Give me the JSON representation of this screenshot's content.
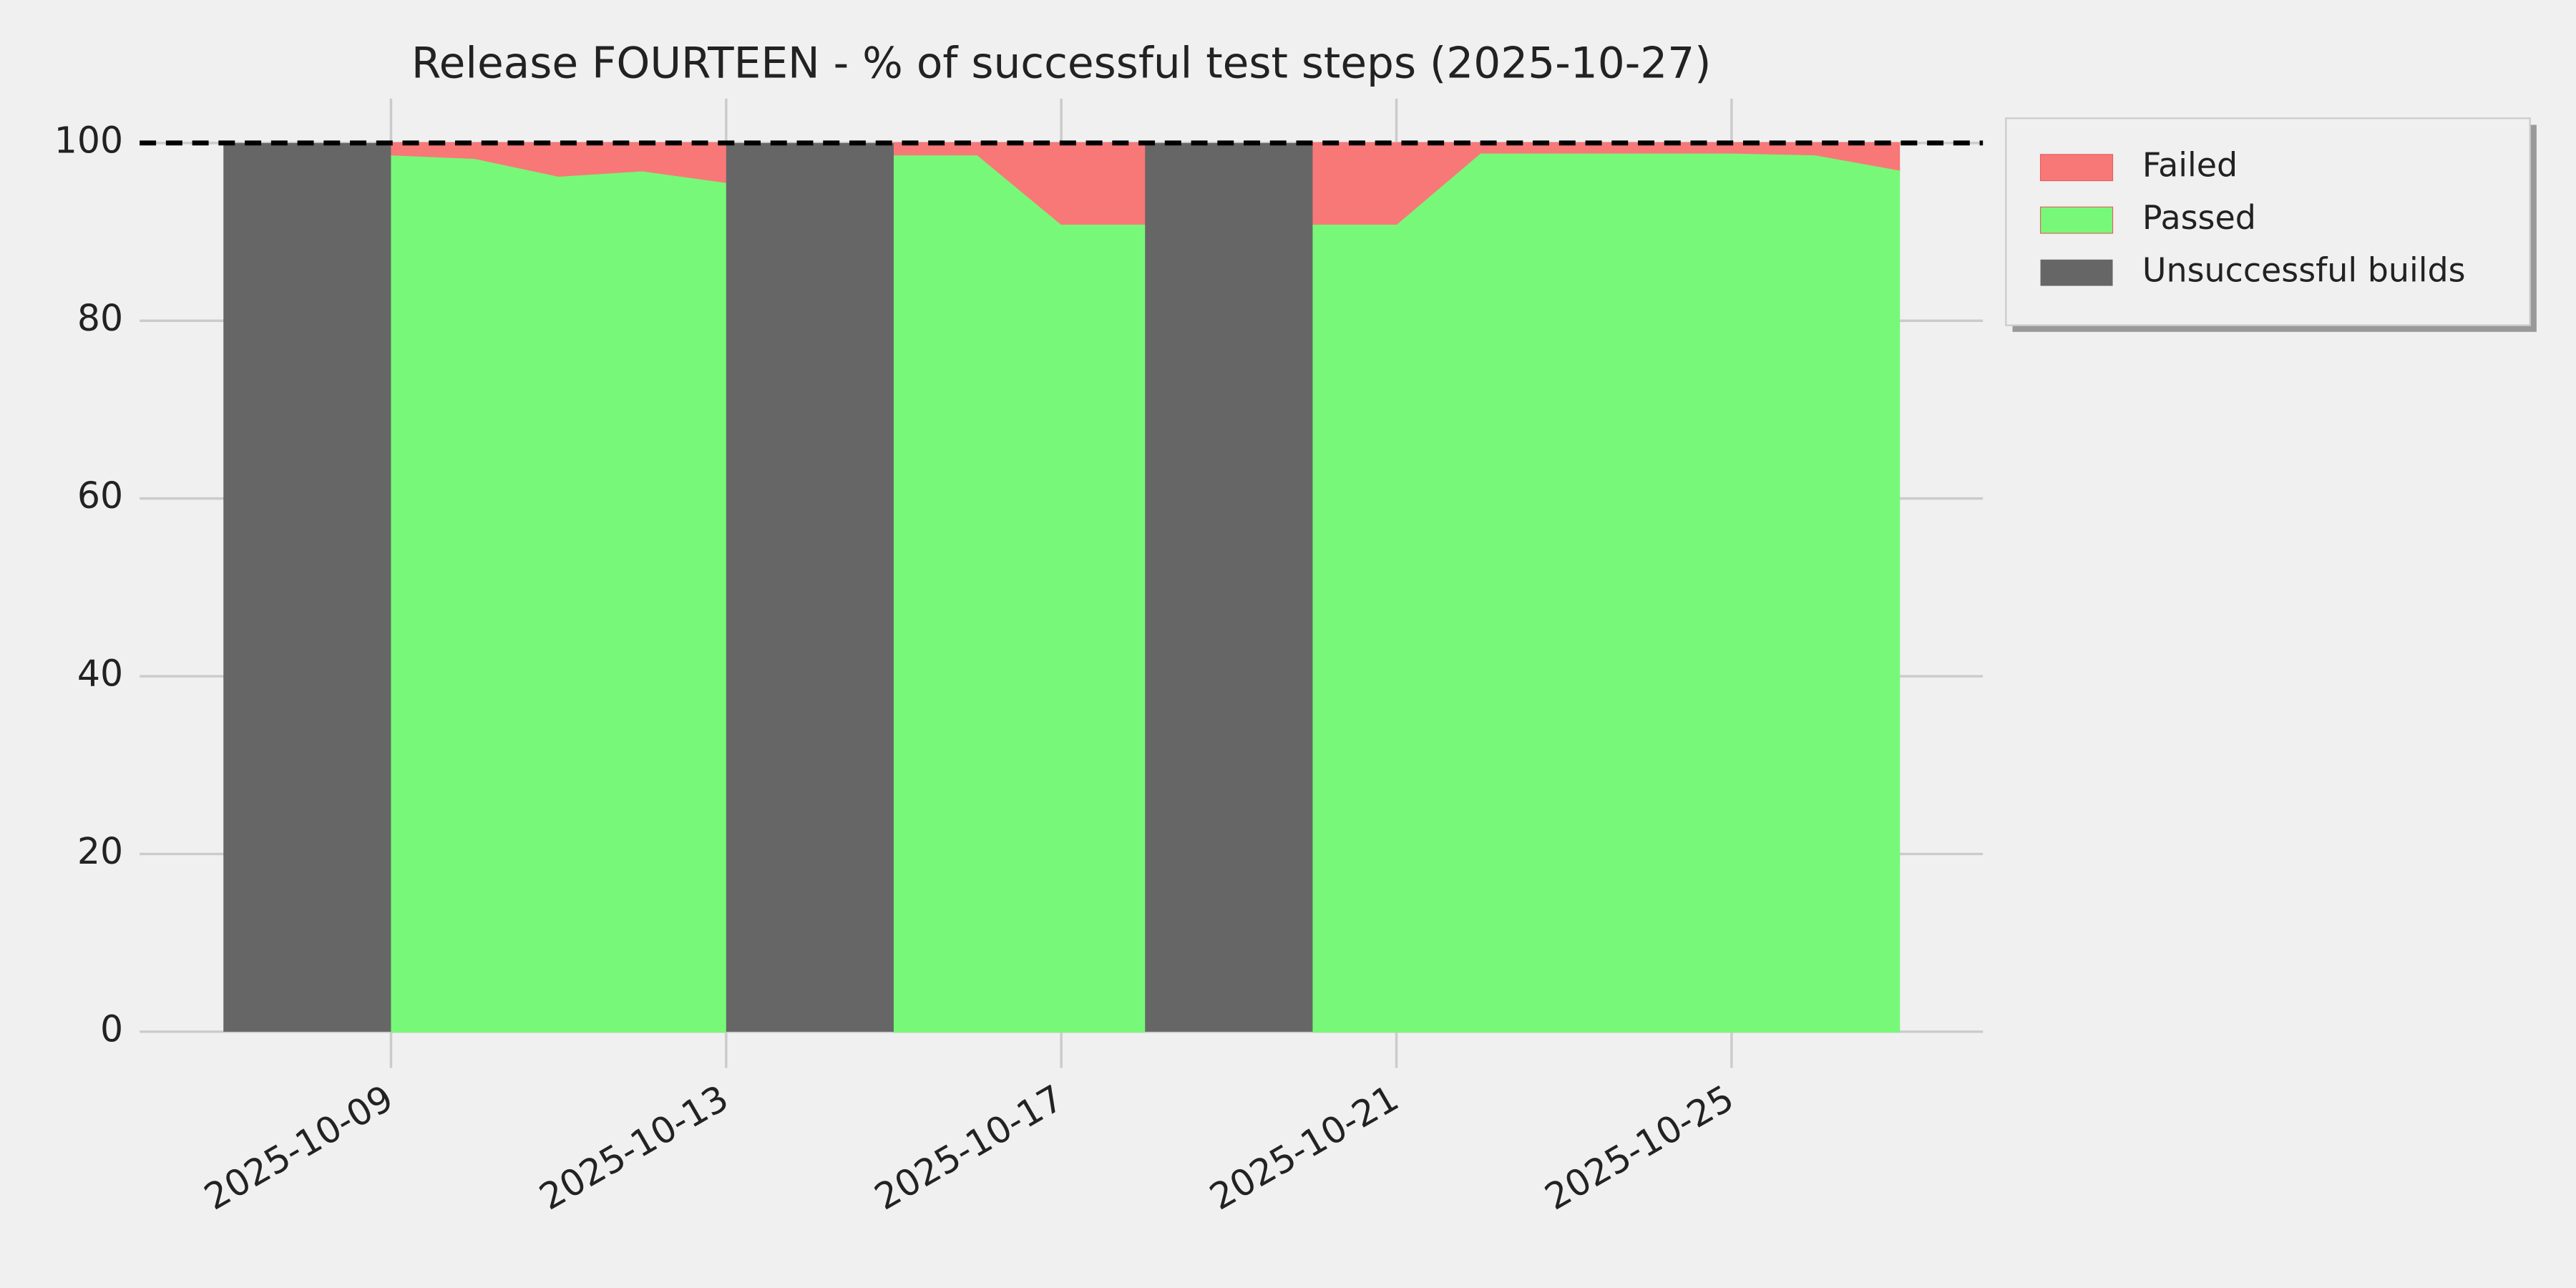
{
  "chart_data": {
    "type": "area",
    "title": "Release FOURTEEN - % of successful test steps (2025-10-27)",
    "xlim": [
      "2025-10-06",
      "2025-10-28"
    ],
    "xticks": [
      "2025-10-09",
      "2025-10-13",
      "2025-10-17",
      "2025-10-21",
      "2025-10-25"
    ],
    "ylim": [
      0,
      105
    ],
    "yticks": [
      0,
      20,
      40,
      60,
      80,
      100
    ],
    "grid": true,
    "reference_line": 100,
    "legend": "outside upper right",
    "x": [
      "2025-10-09",
      "2025-10-10",
      "2025-10-11",
      "2025-10-12",
      "2025-10-13",
      null,
      "2025-10-15",
      "2025-10-16",
      "2025-10-17",
      "2025-10-18",
      null,
      "2025-10-20",
      "2025-10-21",
      "2025-10-22",
      "2025-10-23",
      "2025-10-24",
      "2025-10-25",
      "2025-10-26",
      "2025-10-27"
    ],
    "series": [
      {
        "name": "Failed",
        "color": "#f87878",
        "stacked_on": 1,
        "values": [
          1.3,
          1.7,
          3.7,
          3.1,
          4.4,
          null,
          1.3,
          1.3,
          9.1,
          9.1,
          null,
          9.1,
          9.1,
          1.1,
          1.1,
          1.1,
          1.1,
          1.3,
          3.0
        ]
      },
      {
        "name": "Passed",
        "color": "#78f878",
        "values": [
          98.7,
          98.3,
          96.3,
          96.9,
          95.6,
          null,
          98.7,
          98.7,
          90.9,
          90.9,
          null,
          90.9,
          90.9,
          98.9,
          98.9,
          98.9,
          98.9,
          98.7,
          97.0
        ]
      },
      {
        "name": "Unsuccessful builds",
        "color": "#666666",
        "x": [
          "2025-10-07",
          "2025-10-09",
          null,
          "2025-10-13",
          "2025-10-15",
          null,
          "2025-10-18",
          "2025-10-20"
        ],
        "values": [
          100,
          100,
          null,
          100,
          100,
          null,
          100,
          100
        ]
      }
    ]
  }
}
